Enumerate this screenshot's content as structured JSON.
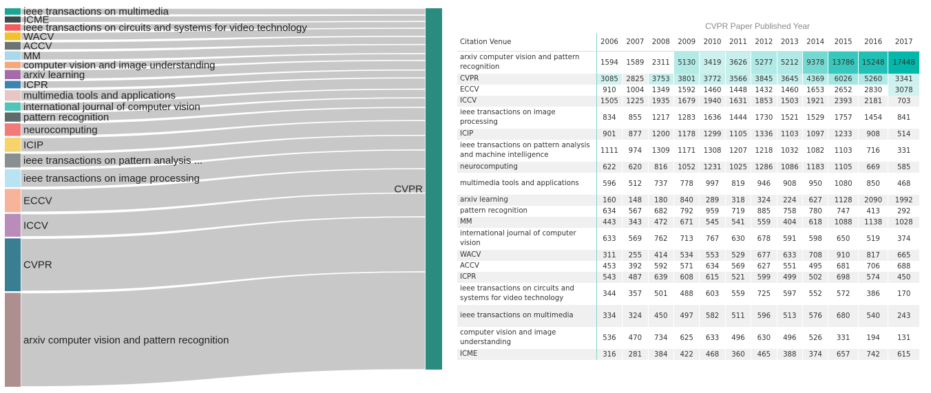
{
  "sankey": {
    "target": "CVPR",
    "target_color": "#2a8c7f",
    "sources": [
      {
        "name": "ieee transactions on multimedia",
        "color": "#1aa595"
      },
      {
        "name": "ICME",
        "color": "#3d4a4a"
      },
      {
        "name": "ieee transactions on circuits and systems for video technology",
        "color": "#f25c5c"
      },
      {
        "name": "WACV",
        "color": "#f2c12e"
      },
      {
        "name": "ACCV",
        "color": "#6b7373"
      },
      {
        "name": "MM",
        "color": "#a8d8ea"
      },
      {
        "name": "computer vision and image understanding",
        "color": "#f8a77a"
      },
      {
        "name": "arxiv learning",
        "color": "#a56bab"
      },
      {
        "name": "ICPR",
        "color": "#3a85b0"
      },
      {
        "name": "multimedia tools and applications",
        "color": "#e8c6c6"
      },
      {
        "name": "international journal of computer vision",
        "color": "#4fc6b8"
      },
      {
        "name": "pattern recognition",
        "color": "#5e6b6b"
      },
      {
        "name": "neurocomputing",
        "color": "#f27a7a"
      },
      {
        "name": "ICIP",
        "color": "#f7d46b"
      },
      {
        "name": "ieee transactions on pattern analysis ...",
        "color": "#8a9090"
      },
      {
        "name": "ieee transactions on image processing",
        "color": "#b9e3f2"
      },
      {
        "name": "ECCV",
        "color": "#f8b49a"
      },
      {
        "name": "ICCV",
        "color": "#b98cba"
      },
      {
        "name": "CVPR",
        "color": "#3a7e93"
      },
      {
        "name": "arxiv computer vision and pattern recognition",
        "color": "#ad8f8f"
      }
    ]
  },
  "chart_data": {
    "type": "table",
    "title": "CVPR Paper Published Year",
    "row_header": "Citation Venue",
    "years": [
      "2006",
      "2007",
      "2008",
      "2009",
      "2010",
      "2011",
      "2012",
      "2013",
      "2014",
      "2015",
      "2016",
      "2017"
    ],
    "heat_color": "#01b8aa",
    "rows": [
      {
        "venue": "arxiv computer vision and pattern recognition",
        "values": [
          1594,
          1589,
          2311,
          5130,
          3419,
          3626,
          5277,
          5212,
          9378,
          13786,
          15248,
          17448
        ]
      },
      {
        "venue": "CVPR",
        "values": [
          3085,
          2825,
          3753,
          3801,
          3772,
          3566,
          3845,
          3645,
          4369,
          6026,
          5260,
          3341
        ]
      },
      {
        "venue": "ECCV",
        "values": [
          910,
          1004,
          1349,
          1592,
          1460,
          1448,
          1432,
          1460,
          1653,
          2652,
          2830,
          3078
        ]
      },
      {
        "venue": "ICCV",
        "values": [
          1505,
          1225,
          1935,
          1679,
          1940,
          1631,
          1853,
          1503,
          1921,
          2393,
          2181,
          703
        ]
      },
      {
        "venue": "ieee transactions on image processing",
        "values": [
          834,
          855,
          1217,
          1283,
          1636,
          1444,
          1730,
          1521,
          1529,
          1757,
          1454,
          841
        ]
      },
      {
        "venue": "ICIP",
        "values": [
          901,
          877,
          1200,
          1178,
          1299,
          1105,
          1336,
          1103,
          1097,
          1233,
          908,
          514
        ]
      },
      {
        "venue": "ieee transactions on pattern analysis and machine intelligence",
        "values": [
          1111,
          974,
          1309,
          1171,
          1308,
          1207,
          1218,
          1032,
          1082,
          1103,
          716,
          331
        ]
      },
      {
        "venue": "neurocomputing",
        "values": [
          622,
          620,
          816,
          1052,
          1231,
          1025,
          1286,
          1086,
          1183,
          1105,
          669,
          585
        ]
      },
      {
        "venue": "multimedia tools and applications",
        "values": [
          596,
          512,
          737,
          778,
          997,
          819,
          946,
          908,
          950,
          1080,
          850,
          468
        ]
      },
      {
        "venue": "arxiv learning",
        "values": [
          160,
          148,
          180,
          840,
          289,
          318,
          324,
          224,
          627,
          1128,
          2090,
          1992
        ]
      },
      {
        "venue": "pattern recognition",
        "values": [
          634,
          567,
          682,
          792,
          959,
          719,
          885,
          758,
          780,
          747,
          413,
          292
        ]
      },
      {
        "venue": "MM",
        "values": [
          443,
          343,
          472,
          671,
          545,
          541,
          559,
          404,
          618,
          1088,
          1138,
          1028
        ]
      },
      {
        "venue": "international journal of computer vision",
        "values": [
          633,
          569,
          762,
          713,
          767,
          630,
          678,
          591,
          598,
          650,
          519,
          374
        ]
      },
      {
        "venue": "WACV",
        "values": [
          311,
          255,
          414,
          534,
          553,
          529,
          677,
          633,
          708,
          910,
          817,
          665
        ]
      },
      {
        "venue": "ACCV",
        "values": [
          453,
          392,
          592,
          571,
          634,
          569,
          627,
          551,
          495,
          681,
          706,
          688
        ]
      },
      {
        "venue": "ICPR",
        "values": [
          543,
          487,
          639,
          608,
          615,
          521,
          599,
          499,
          502,
          698,
          574,
          450
        ]
      },
      {
        "venue": "ieee transactions on circuits and systems for video technology",
        "values": [
          344,
          357,
          501,
          488,
          603,
          559,
          725,
          597,
          552,
          572,
          386,
          170
        ]
      },
      {
        "venue": "ieee transactions on multimedia",
        "values": [
          334,
          324,
          450,
          497,
          582,
          511,
          596,
          513,
          576,
          680,
          540,
          243
        ]
      },
      {
        "venue": "computer vision and image understanding",
        "values": [
          536,
          470,
          734,
          625,
          633,
          496,
          630,
          496,
          526,
          331,
          194,
          131
        ]
      },
      {
        "venue": "ICME",
        "values": [
          316,
          281,
          384,
          422,
          468,
          360,
          465,
          388,
          374,
          657,
          742,
          615
        ]
      }
    ]
  }
}
